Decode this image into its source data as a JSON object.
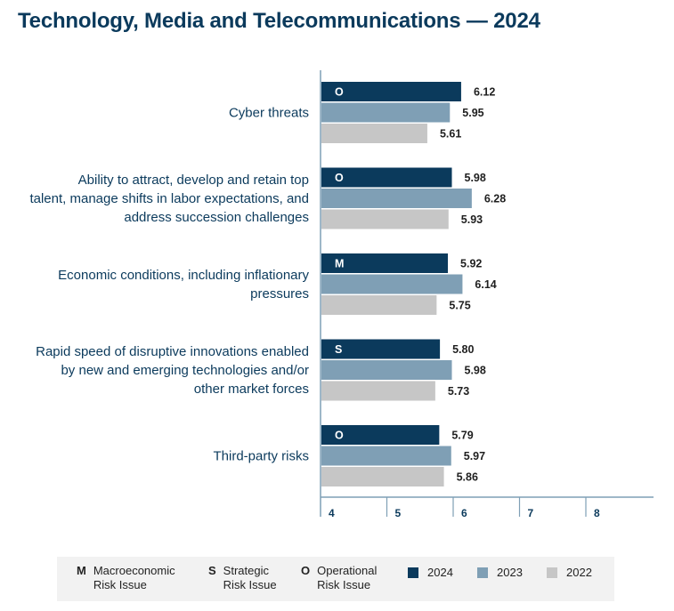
{
  "colors": {
    "2024": "#0b3a5c",
    "2023": "#7f9fb5",
    "2022": "#c6c6c6",
    "axis": "#7f9fb5",
    "text": "#0b3a5c"
  },
  "chart_data": {
    "type": "bar",
    "orientation": "horizontal",
    "title": "Technology, Media and Telecommunications — 2024",
    "categories": [
      {
        "label_lines": [
          "Cyber threats"
        ],
        "code": "O"
      },
      {
        "label_lines": [
          "Ability to attract, develop and retain top",
          "talent, manage shifts in labor expectations, and",
          "address succession challenges"
        ],
        "code": "O"
      },
      {
        "label_lines": [
          "Economic conditions, including inflationary",
          "pressures"
        ],
        "code": "M"
      },
      {
        "label_lines": [
          "Rapid speed of disruptive innovations enabled",
          "by new and emerging technologies and/or",
          "other market forces"
        ],
        "code": "S"
      },
      {
        "label_lines": [
          "Third-party risks"
        ],
        "code": "O"
      }
    ],
    "series": [
      {
        "name": "2024",
        "values": [
          6.12,
          5.98,
          5.92,
          5.8,
          5.79
        ],
        "labels": [
          "6.12",
          "5.98",
          "5.92",
          "5.80",
          "5.79"
        ]
      },
      {
        "name": "2023",
        "values": [
          5.95,
          6.28,
          6.14,
          5.98,
          5.97
        ],
        "labels": [
          "5.95",
          "6.28",
          "6.14",
          "5.98",
          "5.97"
        ]
      },
      {
        "name": "2022",
        "values": [
          5.61,
          5.93,
          5.75,
          5.73,
          5.86
        ],
        "labels": [
          "5.61",
          "5.93",
          "5.75",
          "5.73",
          "5.86"
        ]
      }
    ],
    "xlim": [
      4,
      9
    ],
    "xticks": [
      "4",
      "5",
      "6",
      "7",
      "8"
    ],
    "xlabel": "",
    "ylabel": ""
  },
  "legend": {
    "types": [
      {
        "code": "M",
        "line1": "Macroeconomic",
        "line2": "Risk Issue"
      },
      {
        "code": "S",
        "line1": "Strategic",
        "line2": "Risk Issue"
      },
      {
        "code": "O",
        "line1": "Operational",
        "line2": "Risk Issue"
      }
    ],
    "series": [
      {
        "name": "2024",
        "color": "#0b3a5c"
      },
      {
        "name": "2023",
        "color": "#7f9fb5"
      },
      {
        "name": "2022",
        "color": "#c6c6c6"
      }
    ]
  }
}
